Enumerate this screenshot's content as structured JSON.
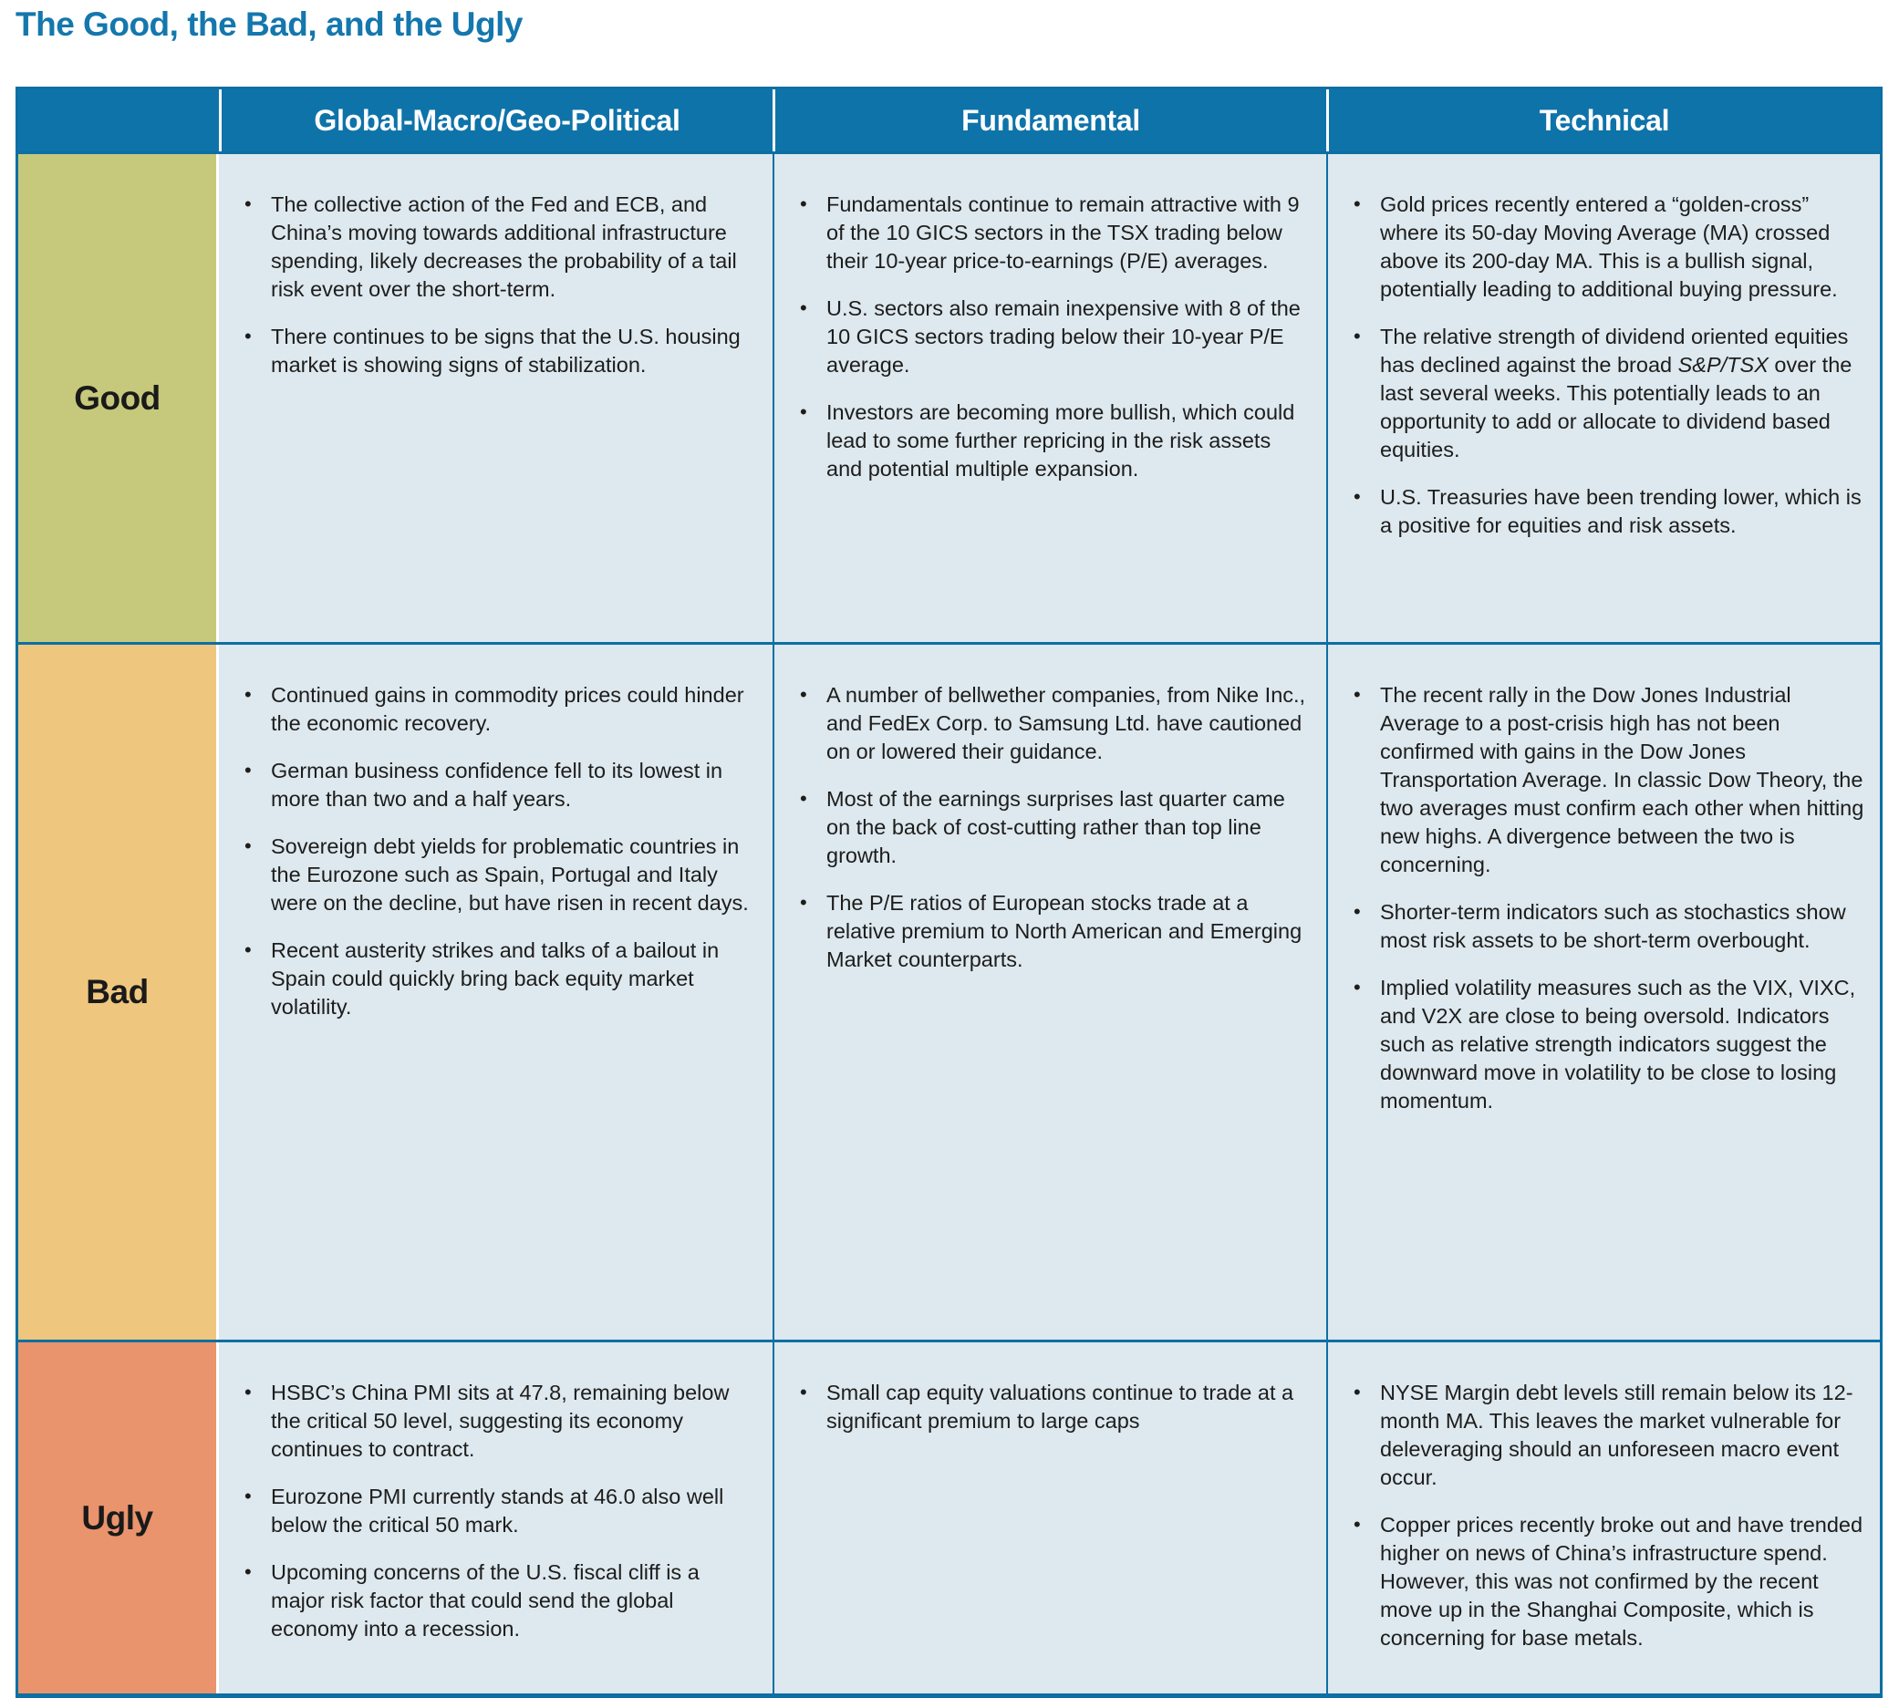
{
  "page_title": "The Good, the Bad, and the Ugly",
  "colors": {
    "title": "#1477ad",
    "header_bg": "#0e73a9",
    "header_text": "#ffffff",
    "cell_bg": "#dde8ef",
    "border": "#0d6fa3",
    "text": "#1d1d1b",
    "good_bg": "#c6c97b",
    "bad_bg": "#efc67e",
    "ugly_bg": "#e9946c"
  },
  "table": {
    "column_headers": [
      "Global-Macro/Geo-Political",
      "Fundamental",
      "Technical"
    ],
    "rows": [
      {
        "label": "Good",
        "label_color": "#c6c97b",
        "cells": [
          {
            "bullets": [
              "The collective action of the Fed and ECB, and China’s moving towards additional infrastructure spending, likely decreases the probability of a tail risk event over the short-term.",
              "There continues to be signs that the U.S. housing market is showing signs of stabilization."
            ]
          },
          {
            "bullets": [
              "Fundamentals continue to remain attractive with 9 of the 10 GICS sectors in the TSX trading below their 10-year price-to-earnings (P/E) averages.",
              "U.S. sectors also remain inexpensive with 8 of the 10 GICS sectors trading below their 10-year P/E average.",
              "Investors are becoming more bullish, which could lead to some further repricing in the risk assets and potential multiple expansion."
            ]
          },
          {
            "bullets": [
              "Gold prices recently entered a “golden-cross” where its 50-day Moving Average (MA) crossed above its 200-day MA. This is a bullish signal, potentially leading to additional buying pressure.",
              [
                {
                  "t": "The relative strength of dividend oriented equities has declined against the broad "
                },
                {
                  "t": "S&P/TSX",
                  "i": true
                },
                {
                  "t": " over the last several weeks. This potentially leads to an opportunity to add or allocate to dividend based equities."
                }
              ],
              "U.S. Treasuries have been trending lower, which is a positive for equities and risk assets."
            ]
          }
        ]
      },
      {
        "label": "Bad",
        "label_color": "#efc67e",
        "cells": [
          {
            "bullets": [
              "Continued gains in commodity prices could hinder the economic recovery.",
              "German business confidence fell to its lowest in more than two and a half years.",
              "Sovereign debt yields for problematic countries in the Eurozone such as Spain, Portugal and Italy were on the decline, but have risen in recent days.",
              "Recent austerity strikes and talks of a bailout in Spain could quickly bring back equity market volatility."
            ]
          },
          {
            "bullets": [
              "A number of bellwether companies, from Nike Inc., and FedEx Corp. to Samsung Ltd. have cautioned on or lowered their guidance.",
              "Most of the earnings surprises last quarter came on the back of cost-cutting rather than top line growth.",
              "The P/E ratios of European stocks trade at a relative premium to North American and Emerging Market counterparts."
            ]
          },
          {
            "bullets": [
              "The recent rally in the Dow Jones Industrial Average to a post-crisis high has not been confirmed with gains in the Dow Jones Transportation Average. In classic Dow Theory, the two averages must confirm each other when hitting new highs. A divergence between the two is concerning.",
              "Shorter-term indicators such as stochastics show most risk assets to be short-term overbought.",
              "Implied volatility measures such as the VIX, VIXC, and V2X are close to being oversold. Indicators such as relative strength indicators suggest the downward move in volatility to be close to losing momentum."
            ]
          }
        ]
      },
      {
        "label": "Ugly",
        "label_color": "#e9946c",
        "cells": [
          {
            "bullets": [
              "HSBC’s China PMI sits at 47.8, remaining below the critical 50 level, suggesting its economy continues to contract.",
              "Eurozone PMI currently stands at 46.0 also well below the critical 50 mark.",
              "Upcoming concerns of the U.S. fiscal cliff is a major risk factor that could send the global economy into a recession."
            ]
          },
          {
            "bullets": [
              "Small cap equity valuations continue to trade at a significant premium to large caps"
            ]
          },
          {
            "bullets": [
              "NYSE Margin debt levels still remain below its 12-month MA. This leaves the market vulnerable for deleveraging should an unforeseen macro event occur.",
              "Copper prices recently broke out and have trended higher on news of China’s infrastructure spend. However, this was not confirmed by the recent move up in the Shanghai Composite, which is concerning for base metals."
            ]
          }
        ]
      }
    ]
  }
}
